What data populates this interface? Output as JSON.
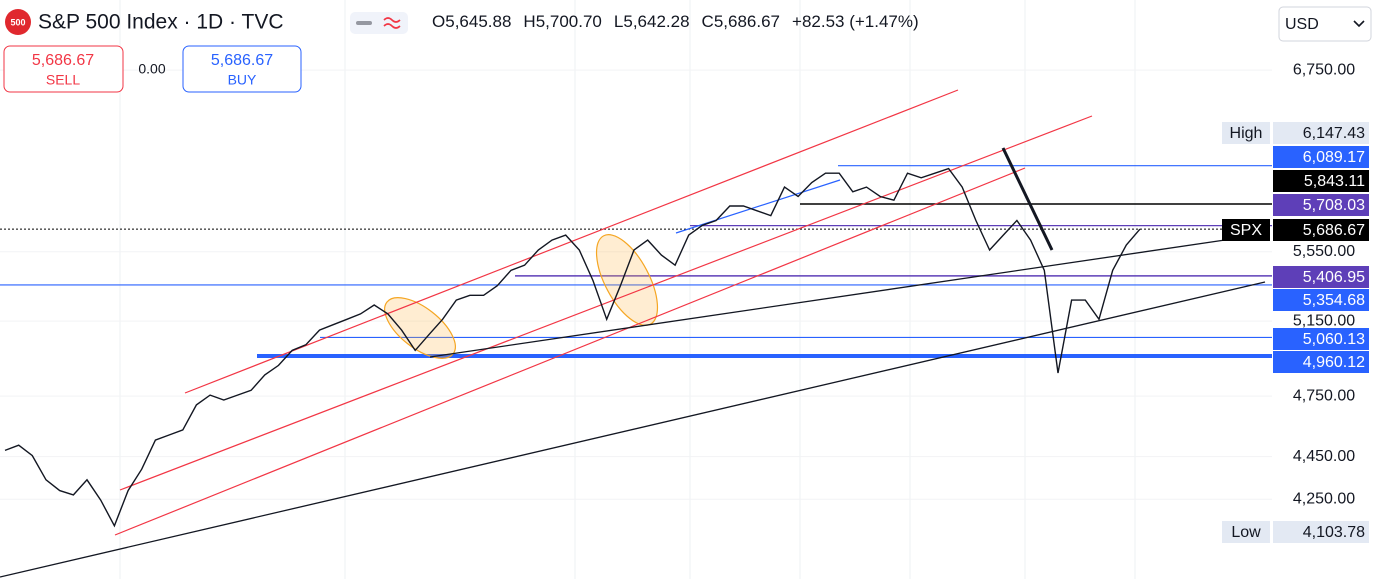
{
  "header": {
    "badge": "500",
    "title": "S&P 500 Index · 1D · TVC",
    "ohlc": [
      {
        "key": "O",
        "value": "5,645.88"
      },
      {
        "key": "H",
        "value": "5,700.70"
      },
      {
        "key": "L",
        "value": "5,642.28"
      },
      {
        "key": "C",
        "value": "5,686.67"
      }
    ],
    "change": "+82.53 (+1.47%)"
  },
  "trade": {
    "sell_price": "5,686.67",
    "sell": "SELL",
    "spread": "0.00",
    "buy_price": "5,686.67",
    "buy": "BUY"
  },
  "currency": "USD",
  "chart_data": {
    "type": "line",
    "log_scale": true,
    "grid": true,
    "color": "#131722",
    "values": [
      4480,
      4505,
      4455,
      4340,
      4290,
      4270,
      4340,
      4246,
      4130,
      4290,
      4390,
      4530,
      4555,
      4580,
      4705,
      4755,
      4730,
      4755,
      4780,
      4860,
      4910,
      4990,
      5020,
      5100,
      5130,
      5160,
      5190,
      5240,
      5190,
      5100,
      4990,
      5075,
      5160,
      5268,
      5295,
      5295,
      5350,
      5440,
      5470,
      5560,
      5620,
      5650,
      5560,
      5380,
      5160,
      5350,
      5560,
      5620,
      5530,
      5470,
      5650,
      5710,
      5740,
      5830,
      5830,
      5800,
      5770,
      5950,
      5890,
      5980,
      6040,
      6040,
      5920,
      5950,
      5890,
      5867,
      6040,
      6010,
      6040,
      6070,
      5950,
      5740,
      5560,
      5650,
      5740,
      5620,
      5440,
      4870,
      5268,
      5268,
      5160,
      5440,
      5590,
      5686.67
    ],
    "ylim": [
      3900,
      7280
    ],
    "yticks": [
      {
        "value": 6750,
        "label": "6,750.00"
      },
      {
        "value": 5550,
        "label": "5,550.00"
      },
      {
        "value": 5150,
        "label": "5,150.00"
      },
      {
        "value": 4750,
        "label": "4,750.00"
      },
      {
        "value": 4450,
        "label": "4,450.00"
      },
      {
        "value": 4250,
        "label": "4,250.00"
      }
    ],
    "levels": [
      {
        "name": "High",
        "value": 6147.43,
        "label": "6,147.43",
        "color": "#e3e9f3"
      },
      {
        "value": 6089.17,
        "label": "6,089.17",
        "color": "#2962ff"
      },
      {
        "value": 5843.11,
        "label": "5,843.11",
        "color": "#000000"
      },
      {
        "value": 5708.03,
        "label": "5,708.03",
        "color": "#5e3fb8"
      },
      {
        "name": "SPX",
        "value": 5686.67,
        "label": "5,686.67",
        "color": "#000000"
      },
      {
        "value": 5406.95,
        "label": "5,406.95",
        "color": "#5e3fb8"
      },
      {
        "value": 5354.68,
        "label": "5,354.68",
        "color": "#2962ff"
      },
      {
        "value": 5060.13,
        "label": "5,060.13",
        "color": "#2962ff"
      },
      {
        "value": 4960.12,
        "label": "4,960.12",
        "color": "#2962ff"
      },
      {
        "name": "Low",
        "value": 4103.78,
        "label": "4,103.78",
        "color": "#e3e9f3"
      }
    ]
  }
}
